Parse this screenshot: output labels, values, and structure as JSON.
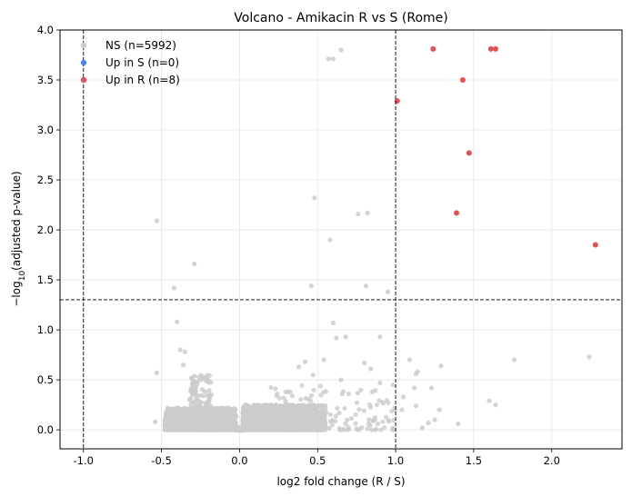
{
  "chart_data": {
    "type": "scatter",
    "title": "Volcano - Amikacin R vs S (Rome)",
    "xlabel": "log2 fold change (R / S)",
    "ylabel_prefix": "−log",
    "ylabel_sub": "10",
    "ylabel_suffix": "(adjusted p-value)",
    "xlim": [
      -1.15,
      2.45
    ],
    "ylim": [
      -0.19,
      4.0
    ],
    "xticks": [
      -1.0,
      -0.5,
      0.0,
      0.5,
      1.0,
      1.5,
      2.0
    ],
    "yticks": [
      0.0,
      0.5,
      1.0,
      1.5,
      2.0,
      2.5,
      3.0,
      3.5,
      4.0
    ],
    "grid": true,
    "thresholds": {
      "fc_low": -1.0,
      "fc_high": 1.0,
      "neglog10p": 1.301
    },
    "legend": {
      "position": "top-left",
      "entries": [
        {
          "label": "NS (n=5992)",
          "color": "#cccccc"
        },
        {
          "label": "Up in S (n=0)",
          "color": "#4a86e8"
        },
        {
          "label": "Up in R (n=8)",
          "color": "#e05252"
        }
      ]
    },
    "series": [
      {
        "name": "NS (n=5992)",
        "color": "#cccccc",
        "points": [
          [
            -0.53,
            2.09
          ],
          [
            -0.29,
            1.66
          ],
          [
            -0.42,
            1.42
          ],
          [
            -0.4,
            1.08
          ],
          [
            -0.38,
            0.8
          ],
          [
            -0.35,
            0.78
          ],
          [
            -0.53,
            0.57
          ],
          [
            -0.54,
            0.08
          ],
          [
            -0.36,
            0.65
          ],
          [
            -0.3,
            0.5
          ],
          [
            -0.32,
            0.3
          ],
          [
            0.48,
            2.32
          ],
          [
            0.58,
            1.9
          ],
          [
            0.57,
            3.71
          ],
          [
            0.6,
            3.71
          ],
          [
            0.65,
            3.8
          ],
          [
            0.76,
            2.16
          ],
          [
            0.82,
            2.17
          ],
          [
            0.81,
            1.44
          ],
          [
            0.95,
            1.38
          ],
          [
            0.46,
            1.44
          ],
          [
            0.6,
            1.07
          ],
          [
            0.68,
            0.93
          ],
          [
            0.62,
            0.92
          ],
          [
            0.9,
            0.93
          ],
          [
            0.54,
            0.7
          ],
          [
            0.8,
            0.67
          ],
          [
            0.84,
            0.61
          ],
          [
            0.42,
            0.68
          ],
          [
            0.38,
            0.63
          ],
          [
            0.9,
            0.47
          ],
          [
            0.85,
            0.38
          ],
          [
            0.7,
            0.36
          ],
          [
            0.47,
            0.55
          ],
          [
            0.65,
            0.5
          ],
          [
            0.88,
            0.25
          ],
          [
            1.09,
            0.7
          ],
          [
            1.05,
            0.33
          ],
          [
            1.12,
            0.42
          ],
          [
            1.14,
            0.58
          ],
          [
            1.13,
            0.56
          ],
          [
            1.29,
            0.64
          ],
          [
            1.23,
            0.42
          ],
          [
            1.21,
            0.07
          ],
          [
            1.28,
            0.2
          ],
          [
            1.13,
            0.24
          ],
          [
            1.6,
            0.29
          ],
          [
            1.76,
            0.7
          ],
          [
            1.64,
            0.25
          ],
          [
            1.4,
            0.06
          ],
          [
            1.17,
            0.02
          ],
          [
            2.24,
            0.73
          ],
          [
            1.04,
            0.2
          ],
          [
            1.25,
            0.1
          ]
        ],
        "clusters": [
          {
            "x_range": [
              -0.48,
              -0.02
            ],
            "y_max": 0.22,
            "count": 1700
          },
          {
            "x_range": [
              -0.32,
              -0.18
            ],
            "y_max": 0.55,
            "count": 220
          },
          {
            "x_range": [
              0.02,
              0.55
            ],
            "y_max": 0.25,
            "count": 2200
          },
          {
            "x_range": [
              0.2,
              1.0
            ],
            "y_max": 0.45,
            "count": 160
          },
          {
            "x_range": [
              -0.02,
              0.02
            ],
            "y_max": 0.02,
            "count": 1600
          }
        ]
      },
      {
        "name": "Up in S (n=0)",
        "color": "#4a86e8",
        "points": []
      },
      {
        "name": "Up in R (n=8)",
        "color": "#e05252",
        "points": [
          [
            1.01,
            3.29
          ],
          [
            1.24,
            3.81
          ],
          [
            1.61,
            3.81
          ],
          [
            1.64,
            3.81
          ],
          [
            1.43,
            3.5
          ],
          [
            1.47,
            2.77
          ],
          [
            1.39,
            2.17
          ],
          [
            2.28,
            1.85
          ]
        ]
      }
    ]
  }
}
